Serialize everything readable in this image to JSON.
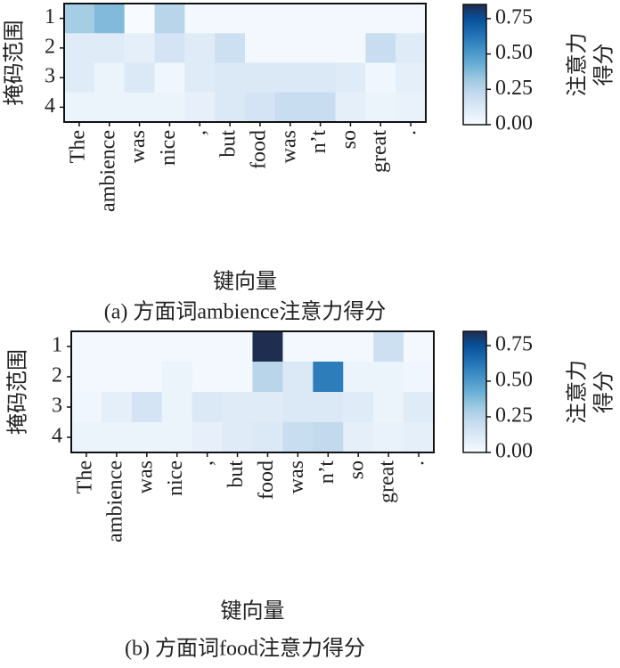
{
  "chart_data": [
    {
      "type": "heatmap",
      "caption": "(a) 方面词ambience注意力得分",
      "x_label": "键向量",
      "y_label": "掩码范围",
      "colorbar_label": [
        "注意力",
        "得分"
      ],
      "categories": [
        "The",
        "ambience",
        "was",
        "nice",
        ",",
        "but",
        "food",
        "was",
        "n’t",
        "so",
        "great",
        "."
      ],
      "rows": [
        1,
        2,
        3,
        4
      ],
      "values": [
        [
          0.3,
          0.38,
          0.0,
          0.25,
          0.02,
          0.02,
          0.02,
          0.02,
          0.02,
          0.02,
          0.02,
          0.02
        ],
        [
          0.1,
          0.1,
          0.08,
          0.15,
          0.1,
          0.18,
          0.02,
          0.02,
          0.02,
          0.02,
          0.2,
          0.1
        ],
        [
          0.1,
          0.05,
          0.12,
          0.03,
          0.1,
          0.12,
          0.12,
          0.12,
          0.12,
          0.1,
          0.03,
          0.08
        ],
        [
          0.05,
          0.05,
          0.05,
          0.05,
          0.07,
          0.12,
          0.15,
          0.2,
          0.2,
          0.08,
          0.05,
          0.06
        ]
      ],
      "colors": [
        "#f7fbff",
        "#deebf7",
        "#c6dbef",
        "#9ecae1",
        "#6baed6",
        "#4292c6",
        "#2171b5",
        "#08519c",
        "#1f2d50"
      ],
      "zlim": [
        0,
        0.85
      ],
      "zticks": [
        {
          "value": 0,
          "label": "0.00"
        },
        {
          "value": 0.25,
          "label": "0.25"
        },
        {
          "value": 0.5,
          "label": "0.50"
        },
        {
          "value": 0.75,
          "label": "0.75"
        }
      ]
    },
    {
      "type": "heatmap",
      "caption": "(b) 方面词food注意力得分",
      "x_label": "键向量",
      "y_label": "掩码范围",
      "colorbar_label": [
        "注意力",
        "得分"
      ],
      "categories": [
        "The",
        "ambience",
        "was",
        "nice",
        ",",
        "but",
        "food",
        "was",
        "n’t",
        "so",
        "great",
        "."
      ],
      "rows": [
        1,
        2,
        3,
        4
      ],
      "values": [
        [
          0.02,
          0.02,
          0.02,
          0.02,
          0.02,
          0.02,
          0.85,
          0.02,
          0.02,
          0.02,
          0.18,
          0.02
        ],
        [
          0.02,
          0.02,
          0.02,
          0.05,
          0.02,
          0.02,
          0.25,
          0.12,
          0.6,
          0.05,
          0.05,
          0.03
        ],
        [
          0.03,
          0.08,
          0.15,
          0.05,
          0.12,
          0.1,
          0.1,
          0.12,
          0.12,
          0.1,
          0.05,
          0.1
        ],
        [
          0.05,
          0.05,
          0.05,
          0.05,
          0.07,
          0.1,
          0.12,
          0.2,
          0.22,
          0.08,
          0.06,
          0.08
        ]
      ],
      "colors": [
        "#f7fbff",
        "#deebf7",
        "#c6dbef",
        "#9ecae1",
        "#6baed6",
        "#4292c6",
        "#2171b5",
        "#08519c",
        "#1f2d50"
      ],
      "zlim": [
        0,
        0.85
      ],
      "zticks": [
        {
          "value": 0,
          "label": "0.00"
        },
        {
          "value": 0.25,
          "label": "0.25"
        },
        {
          "value": 0.5,
          "label": "0.50"
        },
        {
          "value": 0.75,
          "label": "0.75"
        }
      ]
    }
  ]
}
